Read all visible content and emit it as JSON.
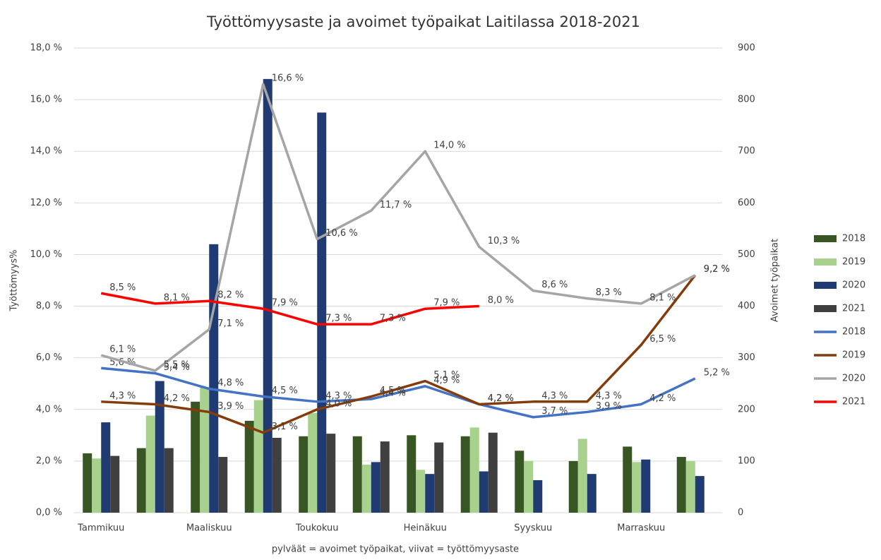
{
  "chart_data": {
    "type": "bar",
    "title": "Työttömyysaste ja avoimet työpaikat Laitilassa 2018-2021",
    "x_label": "pylväät = avoimet työpaikat, viivat = työttömyysaste",
    "y_label": "Työttömyys%",
    "y2_label": "Avoimet työpaikat",
    "categories": [
      "Tammikuu",
      null,
      "Maaliskuu",
      null,
      "Toukokuu",
      null,
      "Heinäkuu",
      null,
      "Syyskuu",
      null,
      "Marraskuu",
      null
    ],
    "ylim": [
      0,
      18
    ],
    "yticks": [
      {
        "value": 0,
        "label": "0,0 %"
      },
      {
        "value": 2,
        "label": "2,0 %"
      },
      {
        "value": 4,
        "label": "4,0 %"
      },
      {
        "value": 6,
        "label": "6,0 %"
      },
      {
        "value": 8,
        "label": "8,0 %"
      },
      {
        "value": 10,
        "label": "10,0 %"
      },
      {
        "value": 12,
        "label": "12,0 %"
      },
      {
        "value": 14,
        "label": "14,0 %"
      },
      {
        "value": 16,
        "label": "16,0 %"
      },
      {
        "value": 18,
        "label": "18,0 %"
      }
    ],
    "y2lim": [
      0,
      900
    ],
    "y2ticks": [
      0,
      100,
      200,
      300,
      400,
      500,
      600,
      700,
      800,
      900
    ],
    "grid": true,
    "legend": "right",
    "series": [
      {
        "name": "2018",
        "type": "bar",
        "axis": "y2",
        "color": "#375623",
        "values": [
          115,
          125,
          215,
          178,
          148,
          148,
          150,
          148,
          120,
          100,
          128,
          108
        ]
      },
      {
        "name": "2019",
        "type": "bar",
        "axis": "y2",
        "color": "#a9d18e",
        "values": [
          105,
          188,
          243,
          218,
          193,
          93,
          83,
          165,
          100,
          143,
          98,
          100
        ]
      },
      {
        "name": "2020",
        "type": "bar",
        "axis": "y2",
        "color": "#203a72",
        "values": [
          175,
          255,
          520,
          840,
          775,
          98,
          75,
          80,
          63,
          75,
          103,
          71
        ]
      },
      {
        "name": "2021",
        "type": "bar",
        "axis": "y2",
        "color": "#404040",
        "values": [
          110,
          125,
          108,
          145,
          153,
          138,
          136,
          155,
          null,
          null,
          null,
          null
        ]
      },
      {
        "name": "2018",
        "type": "line",
        "color": "#4472c4",
        "values": [
          5.6,
          5.4,
          4.8,
          4.5,
          4.3,
          4.4,
          4.9,
          4.2,
          3.7,
          3.9,
          4.2,
          5.2
        ],
        "value_labels": [
          "5,6 %",
          "5,4 %",
          "4,8 %",
          "4,5 %",
          "4,3 %",
          "4,4 %",
          "4,9 %",
          "4,2 %",
          "3,7 %",
          "3,9 %",
          "4,2 %",
          "5,2 %"
        ]
      },
      {
        "name": "2019",
        "type": "line",
        "color": "#843c0c",
        "values": [
          4.3,
          4.2,
          3.9,
          3.1,
          4.0,
          4.5,
          5.1,
          4.2,
          4.3,
          4.3,
          6.5,
          9.2
        ],
        "value_labels": [
          "4,3 %",
          "4,2 %",
          "3,9 %",
          "3,1 %",
          "4,0 %",
          "4,5 %",
          "5,1 %",
          "4,2 %",
          "4,3 %",
          "4,3 %",
          "6,5 %",
          "9,2 %"
        ]
      },
      {
        "name": "2020",
        "type": "line",
        "color": "#a5a5a5",
        "values": [
          6.1,
          5.5,
          7.1,
          16.6,
          10.6,
          11.7,
          14.0,
          10.3,
          8.6,
          8.3,
          8.1,
          9.2
        ],
        "value_labels": [
          "6,1 %",
          "5,5 %",
          "7,1 %",
          "16,6 %",
          "10,6 %",
          "11,7 %",
          "14,0 %",
          "10,3 %",
          "8,6 %",
          "8,3 %",
          "8,1 %",
          "9,2 %"
        ]
      },
      {
        "name": "2021",
        "type": "line",
        "color": "#ff0000",
        "values": [
          8.5,
          8.1,
          8.2,
          7.9,
          7.3,
          7.3,
          7.9,
          8.0,
          null,
          null,
          null,
          null
        ],
        "value_labels": [
          "8,5 %",
          "8,1 %",
          "8,2 %",
          "7,9 %",
          "7,3 %",
          "7,3 %",
          "7,9 %",
          "8,0 %",
          null,
          null,
          null,
          null
        ]
      }
    ]
  }
}
